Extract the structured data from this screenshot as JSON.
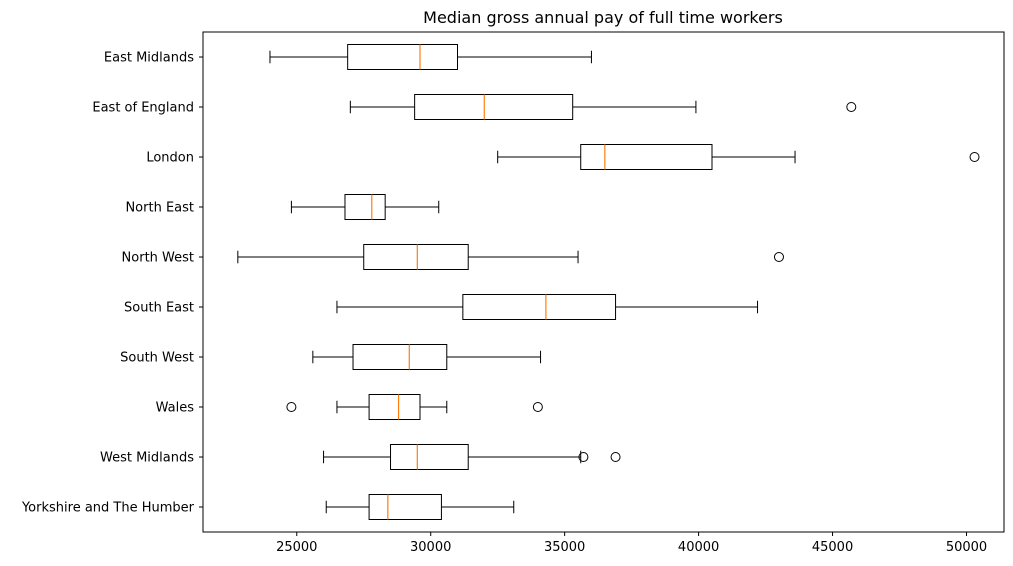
{
  "chart_data": {
    "type": "boxplot",
    "orientation": "horizontal",
    "title": "Median gross annual pay of full time workers",
    "xlabel": "",
    "ylabel": "",
    "xlim": [
      21500,
      51400
    ],
    "xticks": [
      25000,
      30000,
      35000,
      40000,
      45000,
      50000
    ],
    "xtick_labels": [
      "25000",
      "30000",
      "35000",
      "40000",
      "45000",
      "50000"
    ],
    "grid": false,
    "colors": {
      "box": "#000000",
      "median": "#ff7f0e",
      "flier": "#000000"
    },
    "categories": [
      "East Midlands",
      "East of England",
      "London",
      "North East",
      "North West",
      "South East",
      "South West",
      "Wales",
      "West Midlands",
      "Yorkshire and The Humber"
    ],
    "boxes": [
      {
        "name": "East Midlands",
        "whisker_low": 24000,
        "q1": 26900,
        "median": 29600,
        "q3": 31000,
        "whisker_high": 36000,
        "fliers": []
      },
      {
        "name": "East of England",
        "whisker_low": 27000,
        "q1": 29400,
        "median": 32000,
        "q3": 35300,
        "whisker_high": 39900,
        "fliers": [
          45700
        ]
      },
      {
        "name": "London",
        "whisker_low": 32500,
        "q1": 35600,
        "median": 36500,
        "q3": 40500,
        "whisker_high": 43600,
        "fliers": [
          50300
        ]
      },
      {
        "name": "North East",
        "whisker_low": 24800,
        "q1": 26800,
        "median": 27800,
        "q3": 28300,
        "whisker_high": 30300,
        "fliers": []
      },
      {
        "name": "North West",
        "whisker_low": 22800,
        "q1": 27500,
        "median": 29500,
        "q3": 31400,
        "whisker_high": 35500,
        "fliers": [
          43000
        ]
      },
      {
        "name": "South East",
        "whisker_low": 26500,
        "q1": 31200,
        "median": 34300,
        "q3": 36900,
        "whisker_high": 42200,
        "fliers": []
      },
      {
        "name": "South West",
        "whisker_low": 25600,
        "q1": 27100,
        "median": 29200,
        "q3": 30600,
        "whisker_high": 34100,
        "fliers": []
      },
      {
        "name": "Wales",
        "whisker_low": 26500,
        "q1": 27700,
        "median": 28800,
        "q3": 29600,
        "whisker_high": 30600,
        "fliers": [
          24800,
          34000
        ]
      },
      {
        "name": "West Midlands",
        "whisker_low": 26000,
        "q1": 28500,
        "median": 29500,
        "q3": 31400,
        "whisker_high": 35600,
        "fliers": [
          35700,
          36900
        ]
      },
      {
        "name": "Yorkshire and The Humber",
        "whisker_low": 26100,
        "q1": 27700,
        "median": 28400,
        "q3": 30400,
        "whisker_high": 33100,
        "fliers": []
      }
    ]
  }
}
